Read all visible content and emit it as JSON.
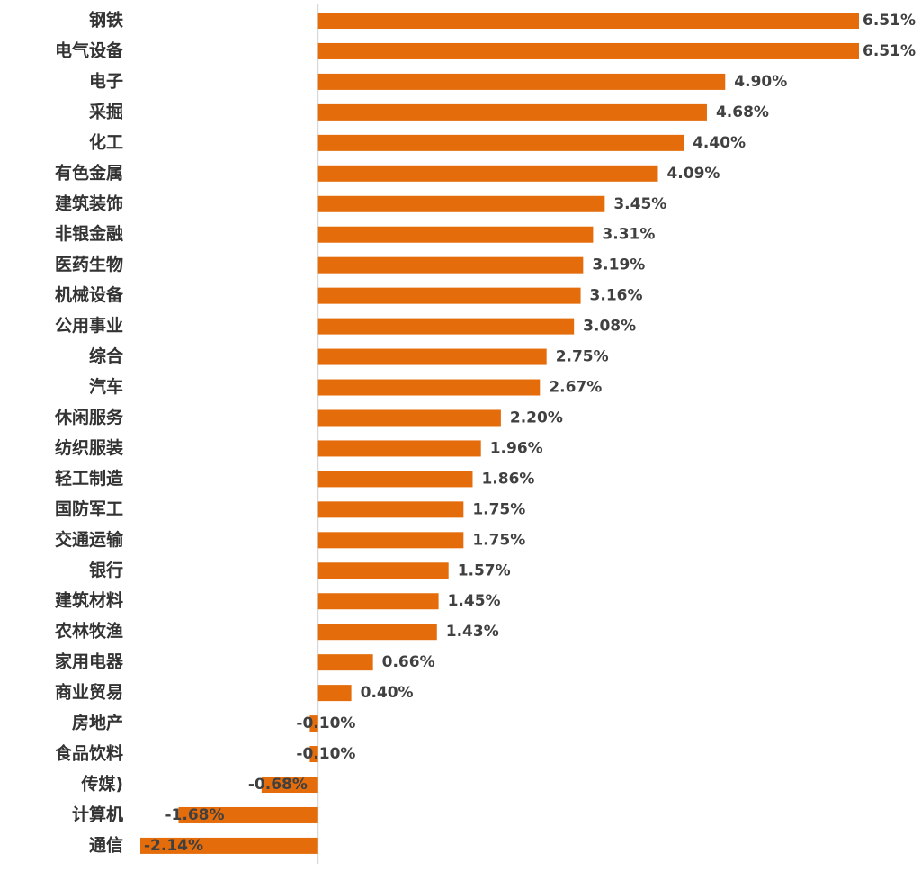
{
  "chart_data": {
    "type": "bar",
    "orientation": "horizontal",
    "color": "#e46c0a",
    "categories": [
      "钢铁",
      "电气设备",
      "电子",
      "采掘",
      "化工",
      "有色金属",
      "建筑装饰",
      "非银金融",
      "医药生物",
      "机械设备",
      "公用事业",
      "综合",
      "汽车",
      "休闲服务",
      "纺织服装",
      "轻工制造",
      "国防军工",
      "交通运输",
      "银行",
      "建筑材料",
      "农林牧渔",
      "家用电器",
      "商业贸易",
      "房地产",
      "食品饮料",
      "传媒)",
      "计算机",
      "通信"
    ],
    "values": [
      6.51,
      6.51,
      4.9,
      4.68,
      4.4,
      4.09,
      3.45,
      3.31,
      3.19,
      3.16,
      3.08,
      2.75,
      2.67,
      2.2,
      1.96,
      1.86,
      1.75,
      1.75,
      1.57,
      1.45,
      1.43,
      0.66,
      0.4,
      -0.1,
      -0.1,
      -0.68,
      -1.68,
      -2.14
    ],
    "value_labels": [
      "6.51%",
      "6.51%",
      "4.90%",
      "4.68%",
      "4.40%",
      "4.09%",
      "3.45%",
      "3.31%",
      "3.19%",
      "3.16%",
      "3.08%",
      "2.75%",
      "2.67%",
      "2.20%",
      "1.96%",
      "1.86%",
      "1.75%",
      "1.75%",
      "1.57%",
      "1.45%",
      "1.43%",
      "0.66%",
      "0.40%",
      "-0.10%",
      "-0.10%",
      "-0.68%",
      "-1.68%",
      "-2.14%"
    ]
  }
}
